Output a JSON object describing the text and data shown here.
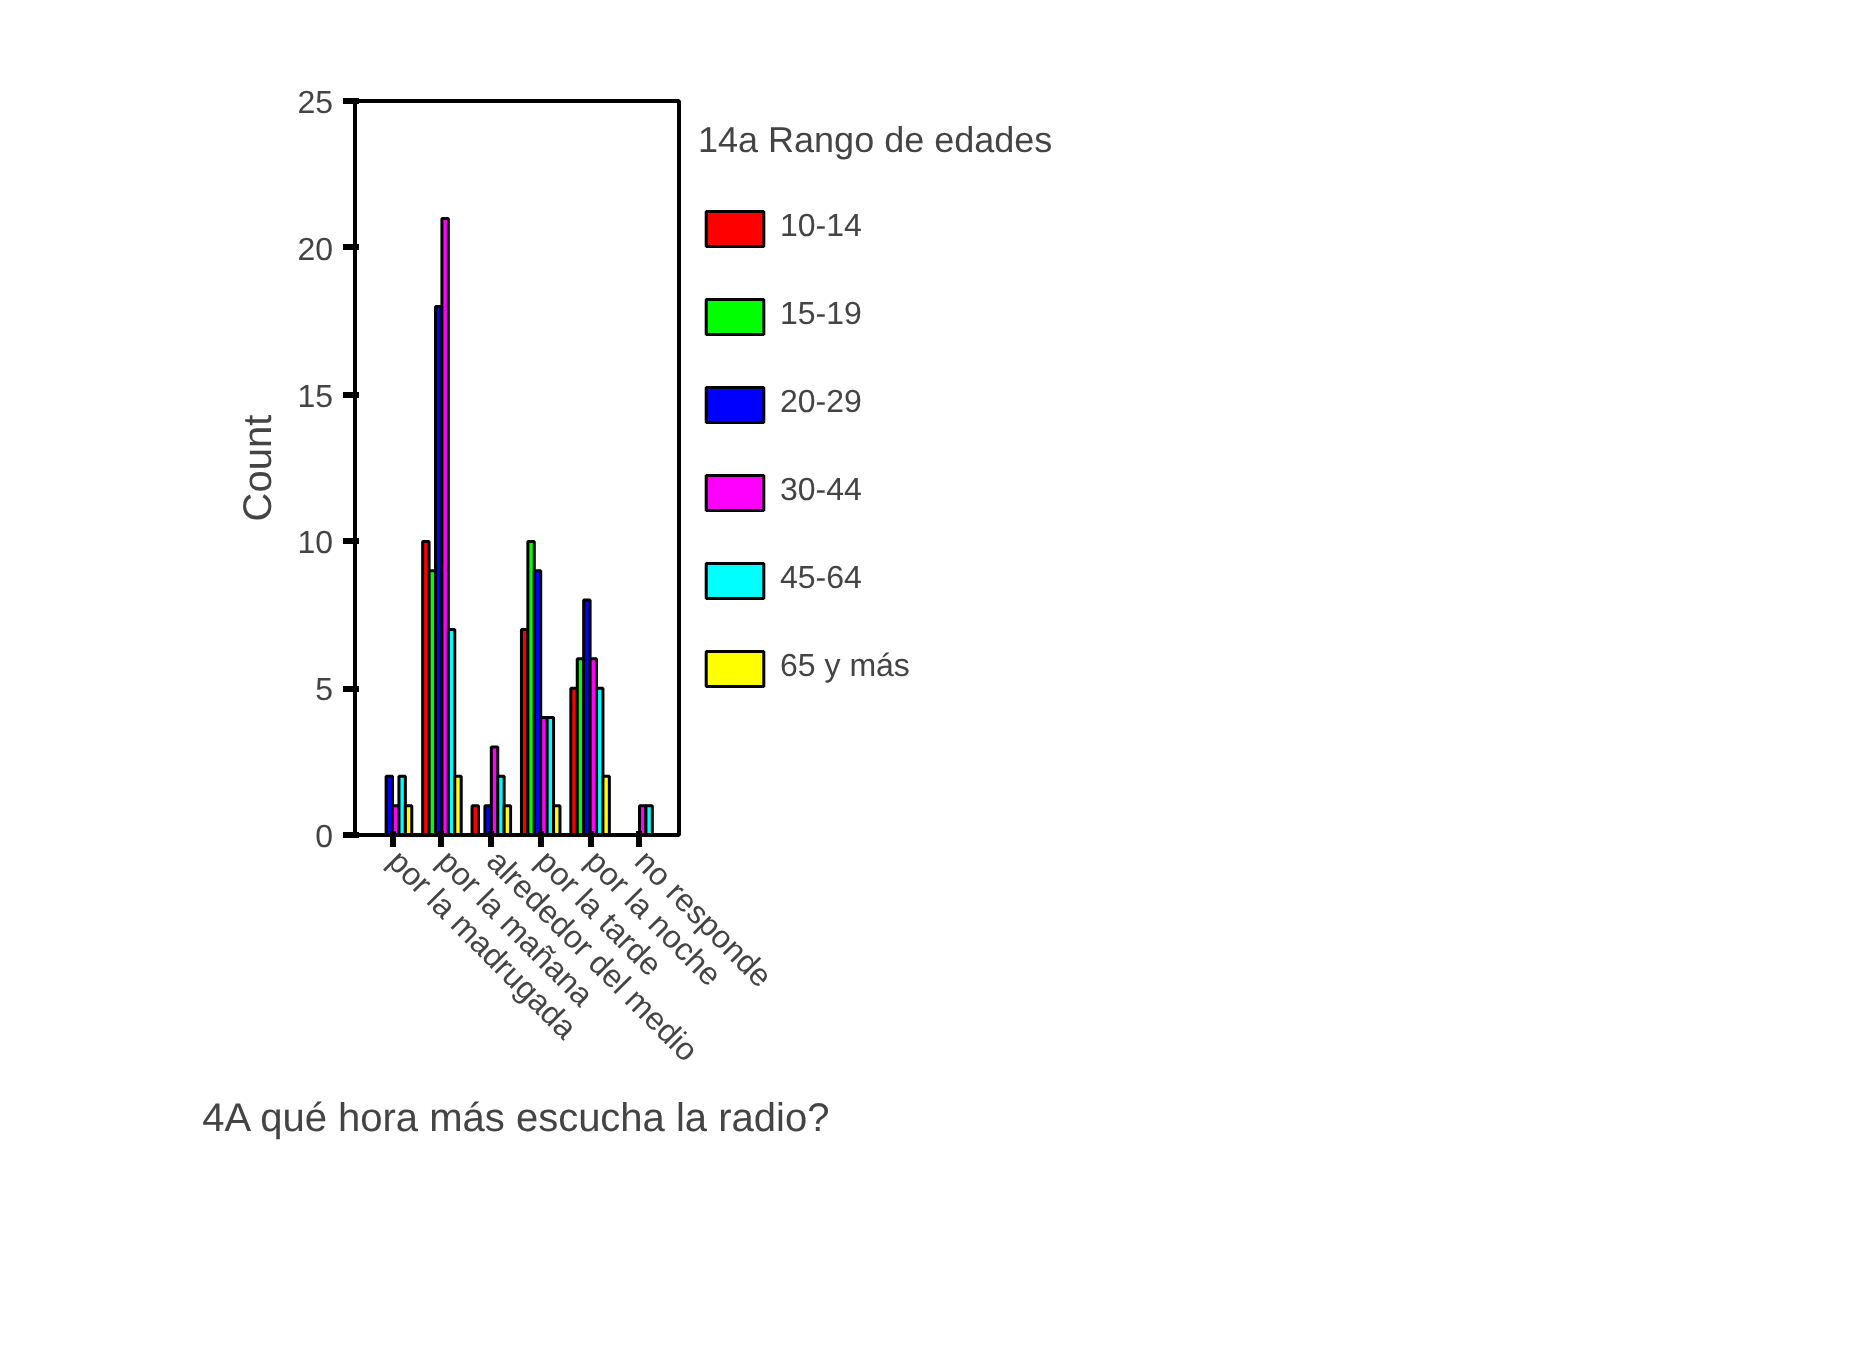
{
  "chart_data": {
    "type": "bar",
    "xlabel": "4A qué hora más escucha la radio?",
    "ylabel": "Count",
    "legend_title": "14a Rango de edades",
    "legend": "right",
    "grid": false,
    "categories": [
      "por la madrugada",
      "por la mañana",
      "alrededor del medio",
      "por la tarde",
      "por la noche",
      "no responde"
    ],
    "ylim": [
      0,
      25
    ],
    "yticks": [
      0,
      5,
      10,
      15,
      20,
      25
    ],
    "series": [
      {
        "name": "10-14",
        "color": "#ff0000",
        "values": [
          null,
          10,
          1,
          7,
          5,
          null
        ]
      },
      {
        "name": "15-19",
        "color": "#00ff00",
        "values": [
          null,
          9,
          null,
          10,
          6,
          null
        ]
      },
      {
        "name": "20-29",
        "color": "#0000ff",
        "values": [
          2,
          18,
          1,
          9,
          8,
          null
        ]
      },
      {
        "name": "30-44",
        "color": "#ff00ff",
        "values": [
          1,
          21,
          3,
          4,
          6,
          1
        ]
      },
      {
        "name": "45-64",
        "color": "#00ffff",
        "values": [
          2,
          7,
          2,
          4,
          5,
          1
        ]
      },
      {
        "name": "65 y más",
        "color": "#ffff00",
        "values": [
          1,
          2,
          1,
          1,
          2,
          null
        ]
      }
    ]
  }
}
